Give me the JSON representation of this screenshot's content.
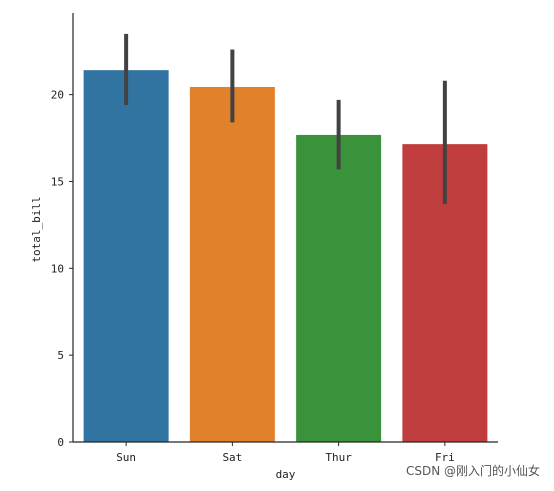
{
  "chart_data": {
    "type": "bar",
    "categories": [
      "Sun",
      "Sat",
      "Thur",
      "Fri"
    ],
    "values": [
      21.41,
      20.44,
      17.68,
      17.15
    ],
    "error_bars": [
      [
        19.4,
        23.5
      ],
      [
        18.4,
        22.6
      ],
      [
        15.7,
        19.7
      ],
      [
        13.7,
        20.8
      ]
    ],
    "colors": [
      "#3274a1",
      "#e1812c",
      "#3a923a",
      "#c03d3e"
    ],
    "errorbar_color": "#424242",
    "xlabel": "day",
    "ylabel": "total_bill",
    "ylim": [
      0,
      24.7
    ],
    "yticks": [
      0,
      5,
      10,
      15,
      20
    ],
    "grid": false,
    "spines": "left-bottom"
  },
  "watermark": {
    "text": "CSDN @刚入门的小仙女"
  }
}
